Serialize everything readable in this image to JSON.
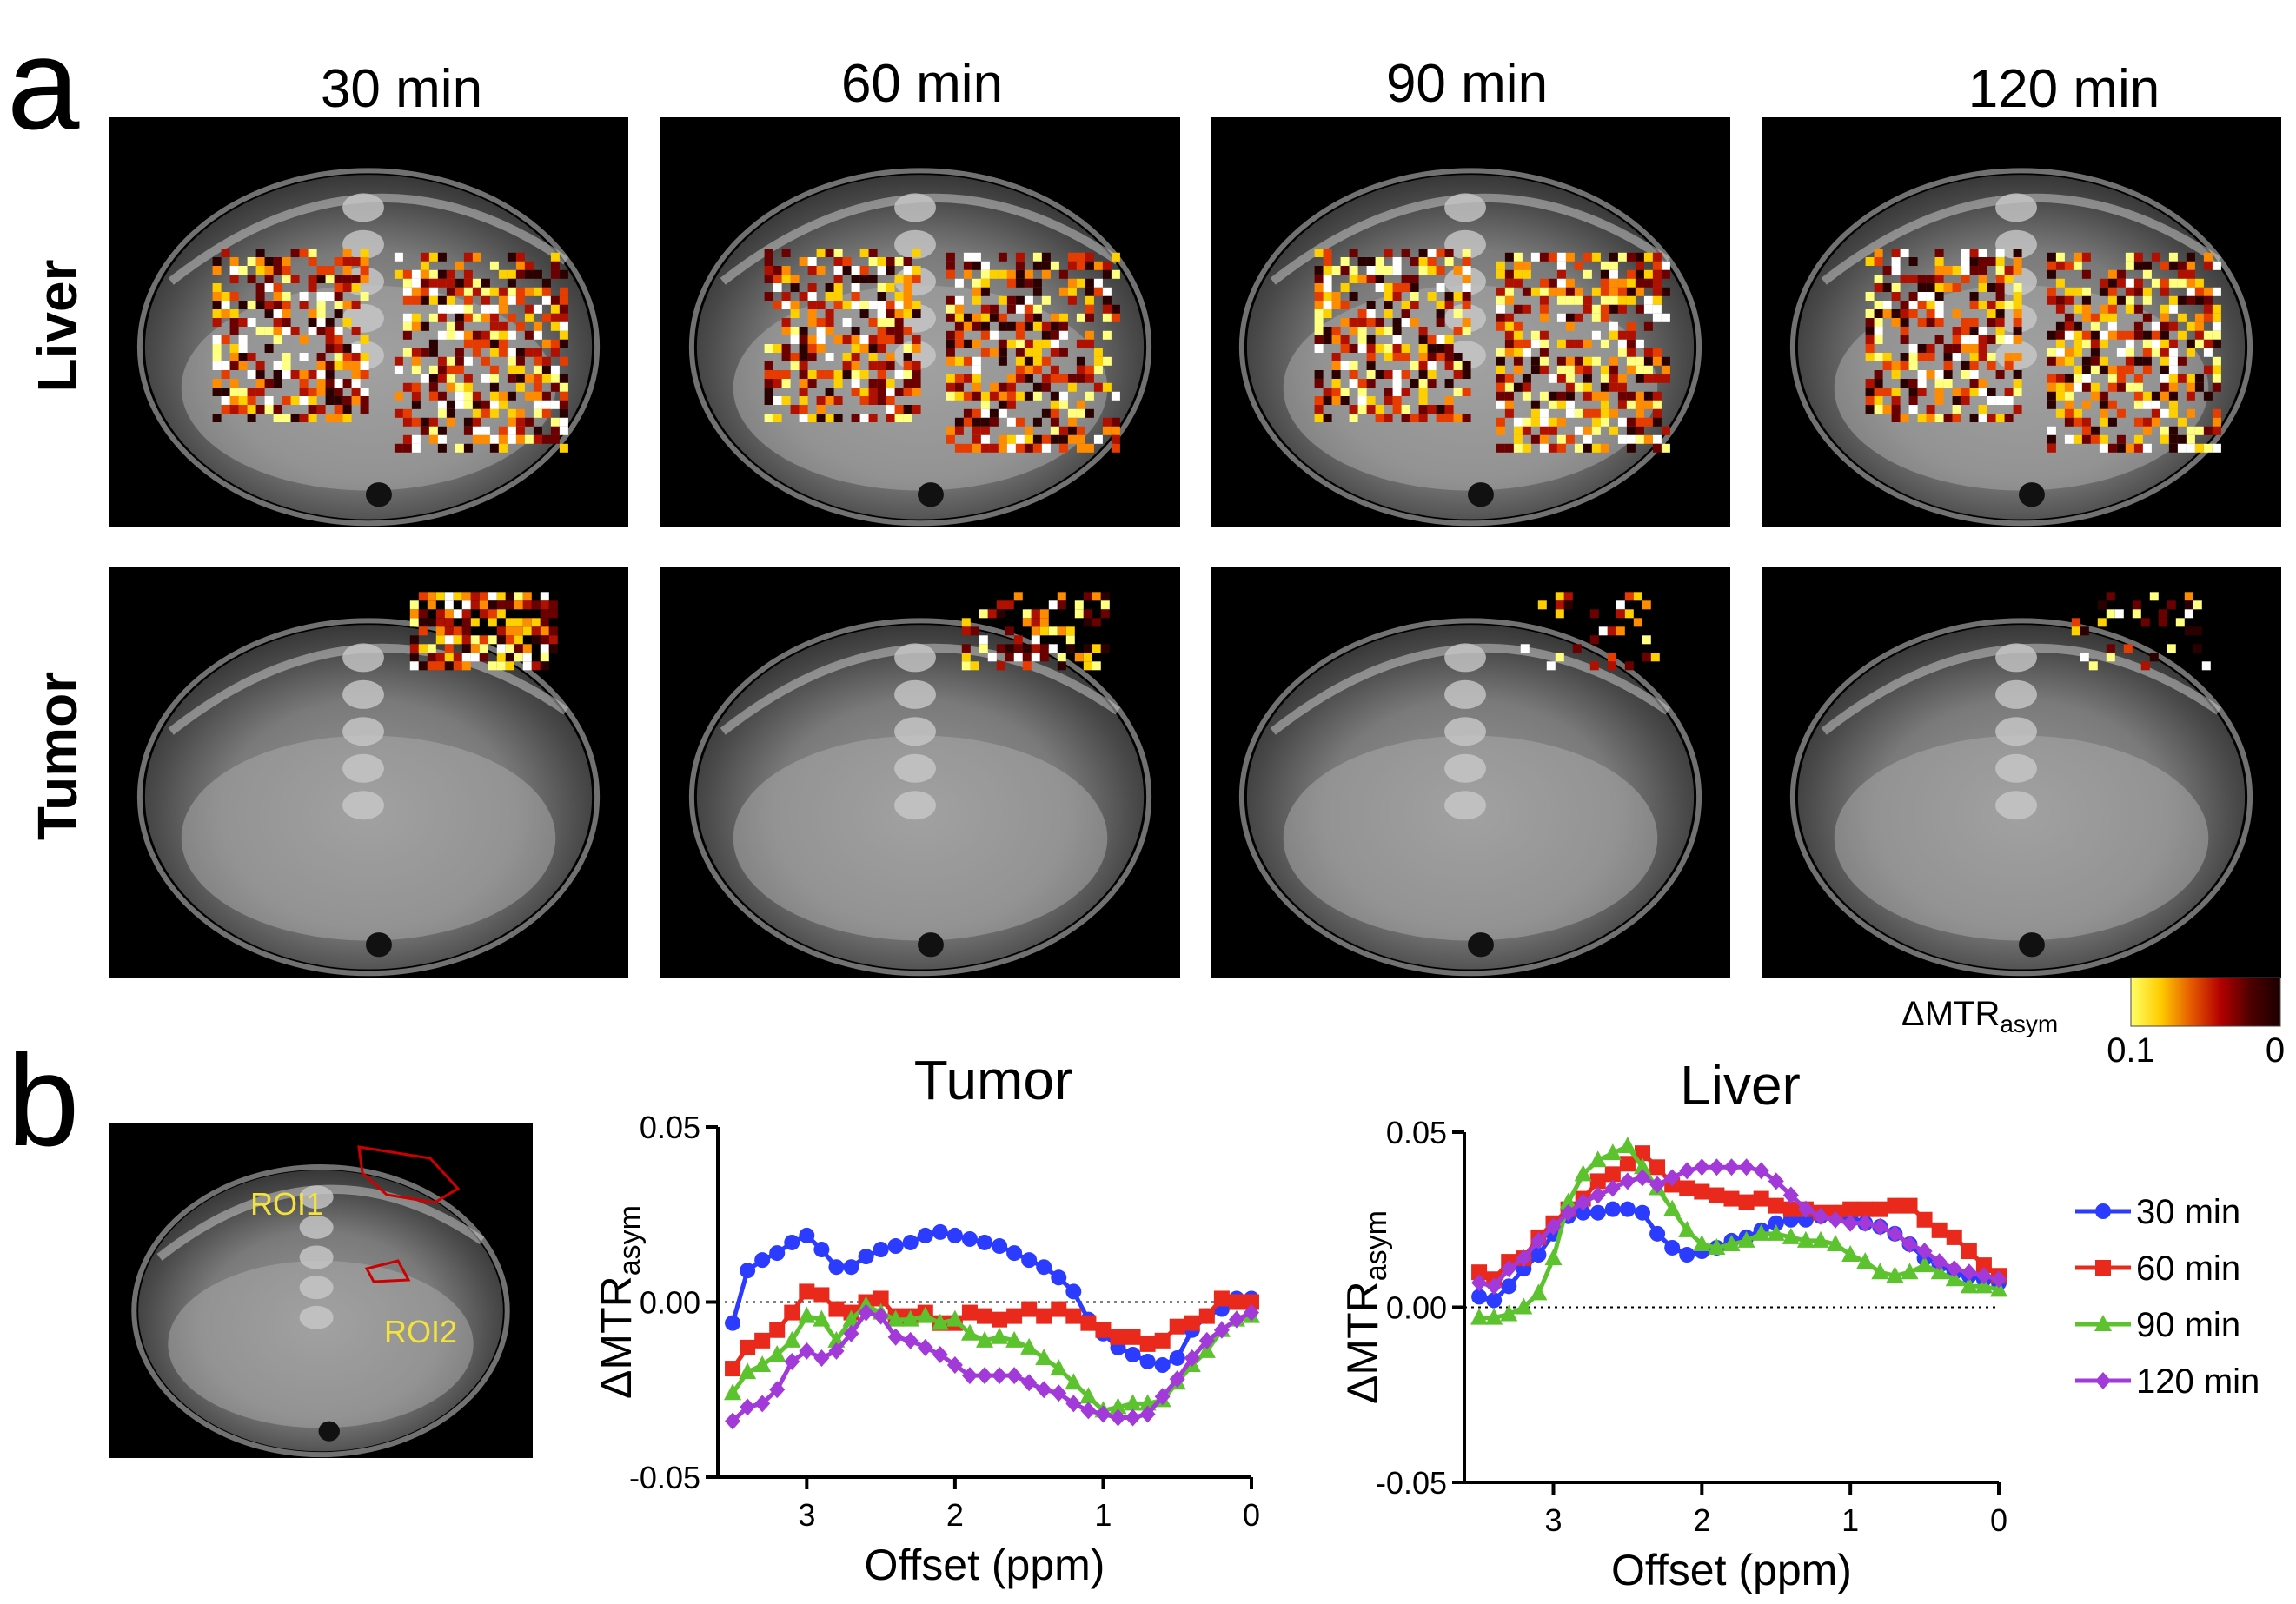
{
  "figure": {
    "panel_a_label": "a",
    "panel_b_label": "b",
    "column_titles": [
      "30 min",
      "60 min",
      "90 min",
      "120 min"
    ],
    "row_labels": [
      "Liver",
      "Tumor"
    ],
    "colorbar": {
      "label_main": "ΔMTR",
      "label_sub": "asym",
      "min_label": "0.1",
      "max_label": "0",
      "colors": [
        "#ffff66",
        "#ffcc00",
        "#e65c00",
        "#b30000",
        "#4d0000",
        "#1a0000"
      ]
    },
    "roi_labels": [
      "ROI1",
      "ROI2"
    ],
    "overlay_palette": [
      "#ffffff",
      "#ffff80",
      "#ffd000",
      "#ff8c00",
      "#e63c00",
      "#b01000",
      "#6a0000",
      "#2a0000"
    ]
  },
  "chart_data": [
    {
      "type": "line",
      "title": "Tumor",
      "xlabel": "Offset (ppm)",
      "ylabel_main": "ΔMTR",
      "ylabel_sub": "asym",
      "xlim": [
        3.6,
        0
      ],
      "ylim": [
        -0.05,
        0.05
      ],
      "xticks": [
        3,
        2,
        1,
        0
      ],
      "yticks": [
        0.05,
        0.0,
        -0.05
      ],
      "ytick_labels": [
        "0.05",
        "0.00",
        "-0.05"
      ],
      "reference_line": 0,
      "x": [
        3.5,
        3.4,
        3.3,
        3.2,
        3.1,
        3.0,
        2.9,
        2.8,
        2.7,
        2.6,
        2.5,
        2.4,
        2.3,
        2.2,
        2.1,
        2.0,
        1.9,
        1.8,
        1.7,
        1.6,
        1.5,
        1.4,
        1.3,
        1.2,
        1.1,
        1.0,
        0.9,
        0.8,
        0.7,
        0.6,
        0.5,
        0.4,
        0.3,
        0.2,
        0.1,
        0.0
      ],
      "series": [
        {
          "name": "30 min",
          "color": "#2b3bff",
          "marker": "circle",
          "values": [
            -0.006,
            0.009,
            0.012,
            0.014,
            0.017,
            0.019,
            0.015,
            0.01,
            0.01,
            0.013,
            0.015,
            0.016,
            0.017,
            0.019,
            0.02,
            0.019,
            0.018,
            0.017,
            0.016,
            0.014,
            0.012,
            0.01,
            0.007,
            0.003,
            -0.005,
            -0.009,
            -0.013,
            -0.015,
            -0.017,
            -0.018,
            -0.016,
            -0.008,
            -0.004,
            -0.002,
            0.001,
            0.001
          ]
        },
        {
          "name": "60 min",
          "color": "#e8291c",
          "marker": "square",
          "values": [
            -0.019,
            -0.013,
            -0.011,
            -0.008,
            -0.003,
            0.003,
            0.002,
            -0.002,
            -0.003,
            0.0,
            0.001,
            -0.004,
            -0.004,
            -0.003,
            -0.006,
            -0.006,
            -0.003,
            -0.004,
            -0.005,
            -0.004,
            -0.002,
            -0.004,
            -0.002,
            -0.004,
            -0.006,
            -0.008,
            -0.01,
            -0.01,
            -0.012,
            -0.011,
            -0.007,
            -0.006,
            -0.004,
            0.001,
            0.0,
            0.0
          ]
        },
        {
          "name": "90 min",
          "color": "#5cc22e",
          "marker": "triangle",
          "values": [
            -0.026,
            -0.02,
            -0.018,
            -0.015,
            -0.011,
            -0.004,
            -0.005,
            -0.011,
            -0.005,
            -0.001,
            -0.003,
            -0.005,
            -0.005,
            -0.004,
            -0.006,
            -0.005,
            -0.009,
            -0.011,
            -0.01,
            -0.011,
            -0.013,
            -0.016,
            -0.019,
            -0.023,
            -0.027,
            -0.031,
            -0.03,
            -0.029,
            -0.029,
            -0.028,
            -0.023,
            -0.018,
            -0.014,
            -0.008,
            -0.005,
            -0.004
          ]
        },
        {
          "name": "120 min",
          "color": "#a23ad9",
          "marker": "diamond",
          "values": [
            -0.034,
            -0.03,
            -0.029,
            -0.025,
            -0.017,
            -0.014,
            -0.016,
            -0.014,
            -0.009,
            -0.003,
            -0.004,
            -0.01,
            -0.011,
            -0.013,
            -0.015,
            -0.018,
            -0.021,
            -0.021,
            -0.021,
            -0.021,
            -0.023,
            -0.025,
            -0.026,
            -0.029,
            -0.031,
            -0.032,
            -0.033,
            -0.033,
            -0.032,
            -0.027,
            -0.022,
            -0.016,
            -0.011,
            -0.008,
            -0.005,
            -0.003
          ]
        }
      ]
    },
    {
      "type": "line",
      "title": "Liver",
      "xlabel": "Offset (ppm)",
      "ylabel_main": "ΔMTR",
      "ylabel_sub": "asym",
      "xlim": [
        3.6,
        0
      ],
      "ylim": [
        -0.05,
        0.05
      ],
      "xticks": [
        3,
        2,
        1,
        0
      ],
      "yticks": [
        0.05,
        0.0,
        -0.05
      ],
      "ytick_labels": [
        "0.05",
        "0.00",
        "-0.05"
      ],
      "reference_line": 0,
      "x": [
        3.5,
        3.4,
        3.3,
        3.2,
        3.1,
        3.0,
        2.9,
        2.8,
        2.7,
        2.6,
        2.5,
        2.4,
        2.3,
        2.2,
        2.1,
        2.0,
        1.9,
        1.8,
        1.7,
        1.6,
        1.5,
        1.4,
        1.3,
        1.2,
        1.1,
        1.0,
        0.9,
        0.8,
        0.7,
        0.6,
        0.5,
        0.4,
        0.3,
        0.2,
        0.1,
        0.0
      ],
      "series": [
        {
          "name": "30 min",
          "color": "#2b3bff",
          "marker": "circle",
          "values": [
            0.003,
            0.002,
            0.006,
            0.011,
            0.015,
            0.021,
            0.026,
            0.027,
            0.027,
            0.028,
            0.028,
            0.027,
            0.021,
            0.017,
            0.015,
            0.016,
            0.017,
            0.019,
            0.02,
            0.022,
            0.024,
            0.025,
            0.025,
            0.026,
            0.027,
            0.026,
            0.024,
            0.023,
            0.021,
            0.018,
            0.014,
            0.012,
            0.01,
            0.009,
            0.008,
            0.007
          ]
        },
        {
          "name": "60 min",
          "color": "#e8291c",
          "marker": "square",
          "values": [
            0.01,
            0.008,
            0.013,
            0.014,
            0.02,
            0.024,
            0.028,
            0.031,
            0.036,
            0.038,
            0.041,
            0.044,
            0.04,
            0.035,
            0.034,
            0.033,
            0.032,
            0.031,
            0.03,
            0.031,
            0.029,
            0.028,
            0.028,
            0.027,
            0.027,
            0.028,
            0.028,
            0.028,
            0.029,
            0.029,
            0.025,
            0.022,
            0.02,
            0.016,
            0.012,
            0.009
          ]
        },
        {
          "name": "90 min",
          "color": "#5cc22e",
          "marker": "triangle",
          "values": [
            -0.003,
            -0.003,
            -0.002,
            0.0,
            0.004,
            0.014,
            0.03,
            0.038,
            0.042,
            0.044,
            0.046,
            0.04,
            0.034,
            0.028,
            0.022,
            0.018,
            0.017,
            0.018,
            0.019,
            0.021,
            0.021,
            0.02,
            0.019,
            0.019,
            0.018,
            0.015,
            0.013,
            0.01,
            0.009,
            0.01,
            0.012,
            0.01,
            0.008,
            0.006,
            0.006,
            0.005
          ]
        },
        {
          "name": "120 min",
          "color": "#a23ad9",
          "marker": "diamond",
          "values": [
            0.007,
            0.006,
            0.011,
            0.014,
            0.019,
            0.023,
            0.027,
            0.03,
            0.032,
            0.034,
            0.036,
            0.037,
            0.035,
            0.037,
            0.039,
            0.04,
            0.04,
            0.04,
            0.04,
            0.039,
            0.036,
            0.032,
            0.028,
            0.026,
            0.025,
            0.024,
            0.024,
            0.023,
            0.021,
            0.018,
            0.016,
            0.013,
            0.011,
            0.01,
            0.009,
            0.008
          ]
        }
      ]
    }
  ]
}
